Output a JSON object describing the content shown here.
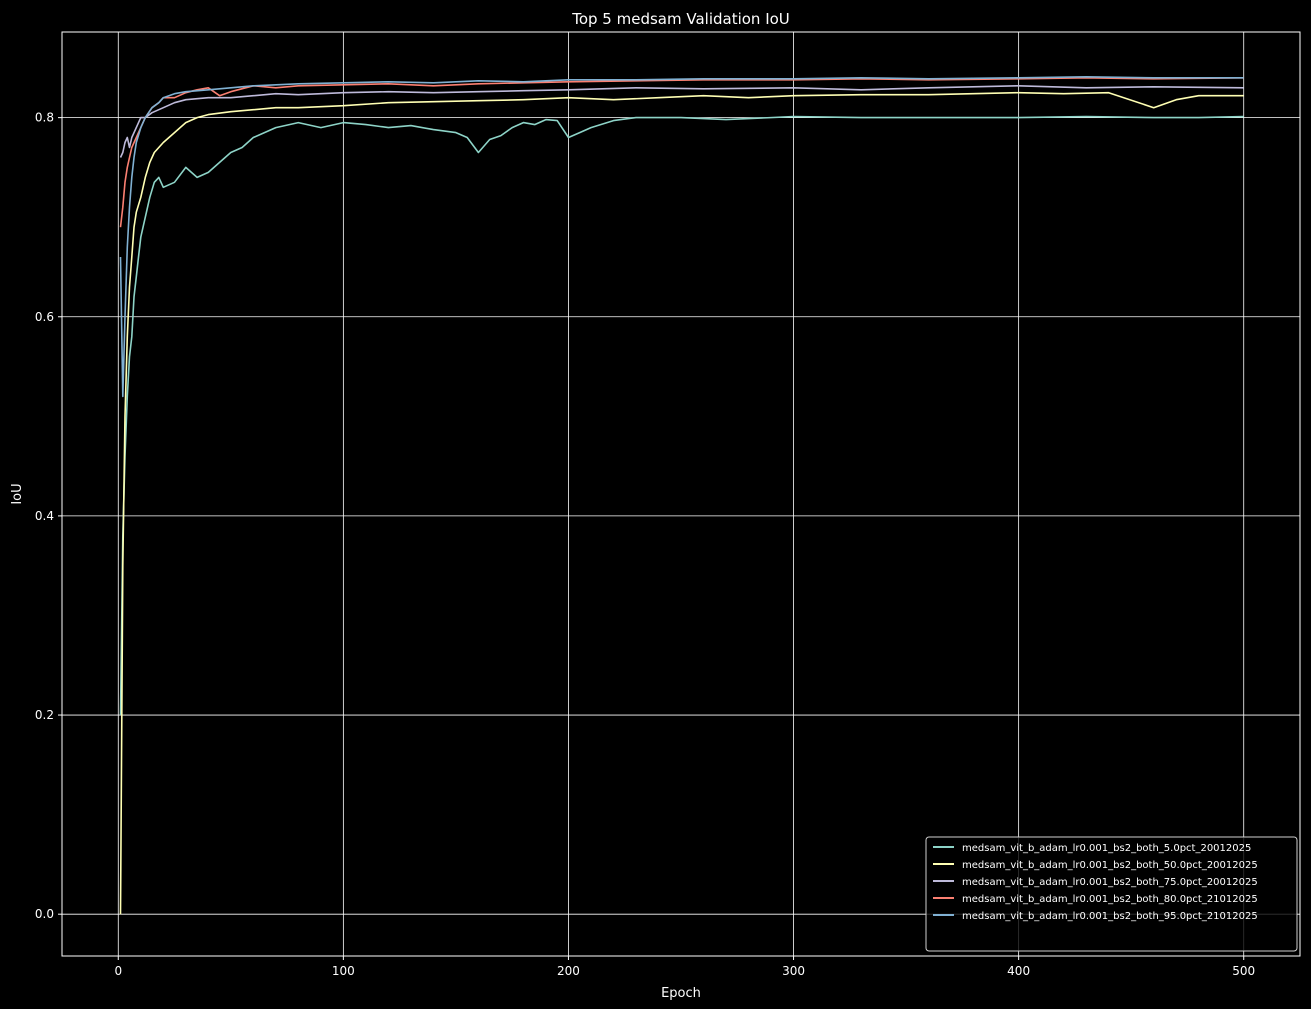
{
  "chart_data": {
    "type": "line",
    "title": "Top 5 medsam Validation IoU",
    "xlabel": "Epoch",
    "ylabel": "IoU",
    "xlim": [
      -25,
      525
    ],
    "ylim": [
      -0.042,
      0.886
    ],
    "xticks": [
      0,
      100,
      200,
      300,
      400,
      500
    ],
    "yticks": [
      0.0,
      0.2,
      0.4,
      0.6,
      0.8
    ],
    "xtick_labels": [
      "0",
      "100",
      "200",
      "300",
      "400",
      "500"
    ],
    "ytick_labels": [
      "0.0",
      "0.2",
      "0.4",
      "0.6",
      "0.8"
    ],
    "grid": true,
    "legend_position": "lower-right",
    "series": [
      {
        "name": "medsam_vit_b_adam_lr0.001_bs2_both_5.0pct_20012025",
        "color": "#8dd3c7",
        "x": [
          1,
          2,
          3,
          4,
          5,
          6,
          7,
          8,
          9,
          10,
          12,
          14,
          16,
          18,
          20,
          25,
          30,
          35,
          40,
          45,
          50,
          55,
          60,
          70,
          80,
          90,
          100,
          110,
          120,
          130,
          140,
          150,
          155,
          160,
          165,
          170,
          175,
          180,
          185,
          190,
          195,
          200,
          205,
          210,
          220,
          230,
          250,
          270,
          300,
          330,
          360,
          400,
          430,
          460,
          480,
          500
        ],
        "y": [
          0.2,
          0.38,
          0.46,
          0.52,
          0.56,
          0.58,
          0.62,
          0.64,
          0.66,
          0.68,
          0.7,
          0.72,
          0.735,
          0.74,
          0.73,
          0.735,
          0.75,
          0.74,
          0.745,
          0.755,
          0.765,
          0.77,
          0.78,
          0.79,
          0.795,
          0.79,
          0.795,
          0.793,
          0.79,
          0.792,
          0.788,
          0.785,
          0.78,
          0.765,
          0.778,
          0.782,
          0.79,
          0.795,
          0.793,
          0.798,
          0.797,
          0.78,
          0.785,
          0.79,
          0.797,
          0.8,
          0.8,
          0.798,
          0.801,
          0.8,
          0.8,
          0.8,
          0.801,
          0.8,
          0.8,
          0.801
        ]
      },
      {
        "name": "medsam_vit_b_adam_lr0.001_bs2_both_50.0pct_20012025",
        "color": "#ffffb3",
        "x": [
          1,
          2,
          3,
          4,
          5,
          6,
          7,
          8,
          10,
          12,
          14,
          16,
          18,
          20,
          25,
          30,
          35,
          40,
          50,
          60,
          70,
          80,
          100,
          120,
          140,
          160,
          180,
          200,
          220,
          240,
          260,
          280,
          300,
          330,
          360,
          400,
          420,
          440,
          460,
          470,
          480,
          500
        ],
        "y": [
          0.0,
          0.35,
          0.5,
          0.58,
          0.63,
          0.66,
          0.69,
          0.705,
          0.72,
          0.74,
          0.755,
          0.765,
          0.77,
          0.775,
          0.785,
          0.795,
          0.8,
          0.803,
          0.806,
          0.808,
          0.81,
          0.81,
          0.812,
          0.815,
          0.816,
          0.817,
          0.818,
          0.82,
          0.818,
          0.82,
          0.822,
          0.82,
          0.822,
          0.823,
          0.823,
          0.825,
          0.824,
          0.825,
          0.81,
          0.818,
          0.822,
          0.822
        ]
      },
      {
        "name": "medsam_vit_b_adam_lr0.001_bs2_both_75.0pct_20012025",
        "color": "#bebada",
        "x": [
          1,
          2,
          3,
          4,
          5,
          6,
          8,
          10,
          12,
          15,
          20,
          25,
          30,
          40,
          50,
          60,
          70,
          80,
          100,
          120,
          140,
          160,
          180,
          200,
          230,
          260,
          300,
          330,
          360,
          400,
          430,
          460,
          500
        ],
        "y": [
          0.76,
          0.765,
          0.775,
          0.78,
          0.77,
          0.78,
          0.79,
          0.8,
          0.8,
          0.805,
          0.81,
          0.815,
          0.818,
          0.82,
          0.82,
          0.822,
          0.824,
          0.823,
          0.825,
          0.826,
          0.825,
          0.826,
          0.827,
          0.828,
          0.83,
          0.829,
          0.83,
          0.828,
          0.83,
          0.832,
          0.83,
          0.831,
          0.83
        ]
      },
      {
        "name": "medsam_vit_b_adam_lr0.001_bs2_both_80.0pct_21012025",
        "color": "#fb8072",
        "x": [
          1,
          2,
          3,
          4,
          5,
          6,
          8,
          10,
          12,
          15,
          18,
          20,
          25,
          30,
          35,
          40,
          45,
          50,
          60,
          70,
          80,
          100,
          120,
          140,
          160,
          180,
          200,
          230,
          260,
          300,
          330,
          360,
          400,
          430,
          460,
          500
        ],
        "y": [
          0.69,
          0.71,
          0.735,
          0.75,
          0.76,
          0.77,
          0.78,
          0.79,
          0.8,
          0.81,
          0.815,
          0.82,
          0.82,
          0.825,
          0.828,
          0.83,
          0.822,
          0.826,
          0.832,
          0.83,
          0.832,
          0.833,
          0.834,
          0.832,
          0.834,
          0.835,
          0.836,
          0.837,
          0.838,
          0.838,
          0.839,
          0.838,
          0.839,
          0.84,
          0.839,
          0.84
        ]
      },
      {
        "name": "medsam_vit_b_adam_lr0.001_bs2_both_95.0pct_21012025",
        "color": "#80b1d3",
        "x": [
          1,
          2,
          3,
          4,
          5,
          6,
          7,
          8,
          10,
          12,
          15,
          18,
          20,
          25,
          30,
          40,
          50,
          60,
          80,
          100,
          120,
          140,
          160,
          180,
          200,
          230,
          260,
          300,
          330,
          360,
          400,
          430,
          460,
          500
        ],
        "y": [
          0.66,
          0.52,
          0.6,
          0.67,
          0.71,
          0.74,
          0.76,
          0.775,
          0.79,
          0.8,
          0.81,
          0.815,
          0.82,
          0.824,
          0.826,
          0.828,
          0.83,
          0.832,
          0.834,
          0.835,
          0.836,
          0.835,
          0.837,
          0.836,
          0.838,
          0.838,
          0.839,
          0.839,
          0.84,
          0.839,
          0.84,
          0.841,
          0.84,
          0.84
        ]
      }
    ]
  }
}
